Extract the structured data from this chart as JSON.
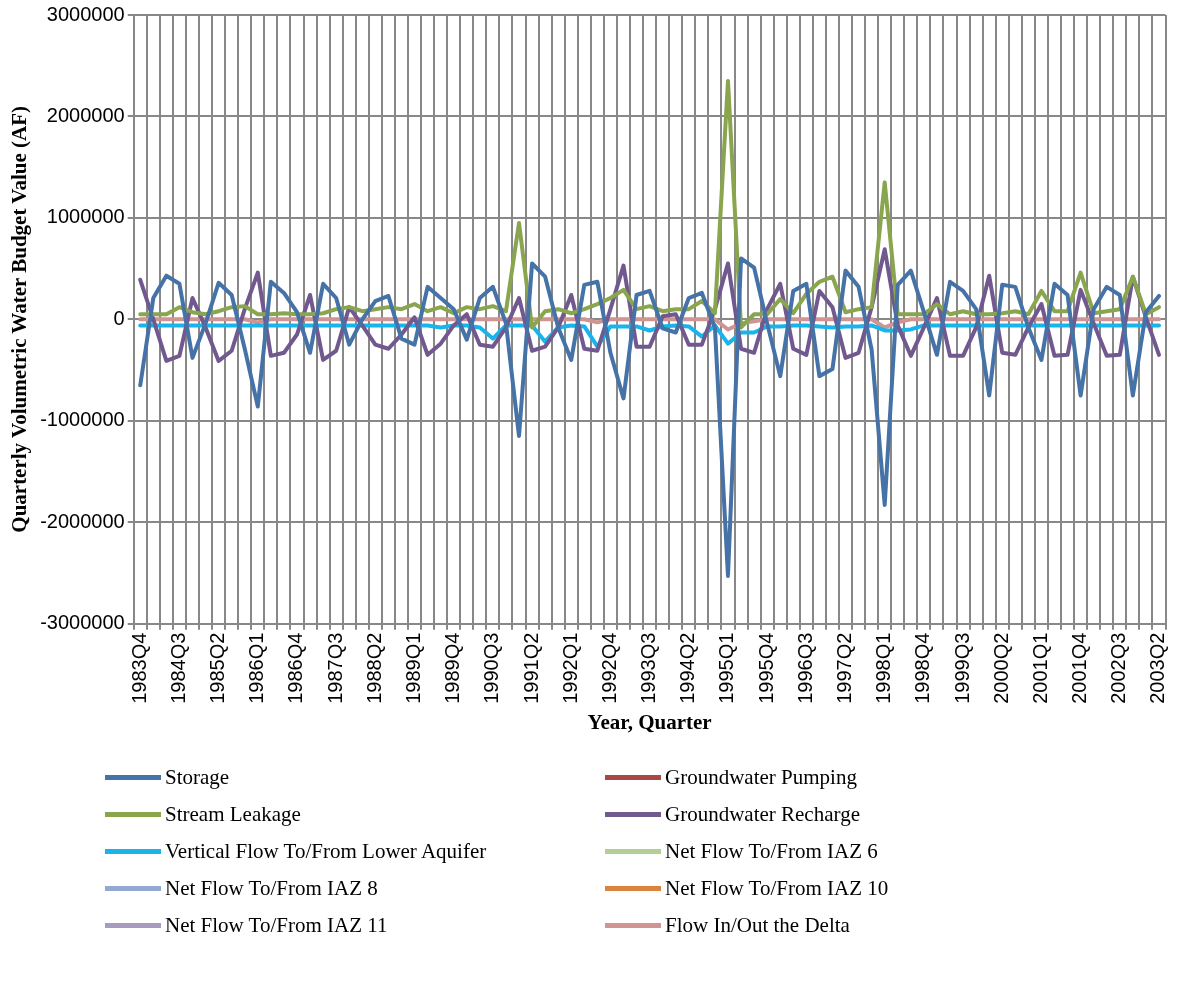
{
  "chart_data": {
    "type": "line",
    "xlabel": "Year, Quarter",
    "ylabel": "Quarterly Volumetric Water Budget Value (AF)",
    "categories": [
      "1983Q4",
      null,
      null,
      "1984Q3",
      null,
      null,
      "1985Q2",
      null,
      null,
      "1986Q1",
      null,
      null,
      "1986Q4",
      null,
      null,
      "1987Q3",
      null,
      null,
      "1988Q2",
      null,
      null,
      "1989Q1",
      null,
      null,
      "1989Q4",
      null,
      null,
      "1990Q3",
      null,
      null,
      "1991Q2",
      null,
      null,
      "1992Q1",
      null,
      null,
      "1992Q4",
      null,
      null,
      "1993Q3",
      null,
      null,
      "1994Q2",
      null,
      null,
      "1995Q1",
      null,
      null,
      "1995Q4",
      null,
      null,
      "1996Q3",
      null,
      null,
      "1997Q2",
      null,
      null,
      "1998Q1",
      null,
      null,
      "1998Q4",
      null,
      null,
      "1999Q3",
      null,
      null,
      "2000Q2",
      null,
      null,
      "2001Q1",
      null,
      null,
      "2001Q4",
      null,
      null,
      "2002Q3",
      null,
      null,
      "2003Q2"
    ],
    "series": [
      {
        "name": "Storage",
        "color": "#4572a7",
        "values": [
          -650000,
          210000,
          430000,
          350000,
          -380000,
          -40000,
          360000,
          240000,
          -290000,
          -860000,
          370000,
          260000,
          70000,
          -330000,
          350000,
          210000,
          -250000,
          0,
          180000,
          230000,
          -190000,
          -250000,
          320000,
          210000,
          100000,
          -200000,
          210000,
          320000,
          -40000,
          -1150000,
          550000,
          420000,
          -80000,
          -400000,
          340000,
          370000,
          -330000,
          -780000,
          240000,
          280000,
          -90000,
          -130000,
          210000,
          260000,
          -80000,
          -2530000,
          600000,
          510000,
          -40000,
          -560000,
          280000,
          350000,
          -560000,
          -490000,
          480000,
          320000,
          -300000,
          -1830000,
          340000,
          480000,
          70000,
          -350000,
          370000,
          280000,
          100000,
          -750000,
          340000,
          320000,
          -80000,
          -400000,
          350000,
          240000,
          -750000,
          100000,
          320000,
          240000,
          -750000,
          70000,
          230000
        ]
      },
      {
        "name": "Groundwater Pumping",
        "color": "#aa4643",
        "values": [
          null,
          null,
          null,
          null,
          null,
          null,
          null,
          null,
          null,
          null,
          null,
          null,
          null,
          null,
          null,
          null,
          null,
          null,
          null,
          null,
          null,
          null,
          null,
          null,
          null,
          null,
          null,
          null,
          null,
          null,
          null,
          null,
          null,
          null,
          null,
          null,
          null,
          null,
          null,
          null,
          null,
          null,
          null,
          null,
          null,
          null,
          null,
          null,
          null,
          null,
          null,
          null,
          null,
          null,
          null,
          null,
          null,
          null,
          null,
          null,
          null,
          null,
          null,
          null,
          null,
          null,
          null,
          null,
          null,
          null,
          null,
          null,
          null,
          null,
          null,
          null,
          null,
          null,
          null
        ]
      },
      {
        "name": "Stream Leakage",
        "color": "#89a54e",
        "values": [
          50000,
          50000,
          50000,
          120000,
          70000,
          50000,
          80000,
          120000,
          130000,
          50000,
          50000,
          60000,
          50000,
          50000,
          60000,
          100000,
          120000,
          80000,
          100000,
          120000,
          100000,
          150000,
          80000,
          120000,
          60000,
          120000,
          100000,
          130000,
          80000,
          950000,
          -80000,
          80000,
          100000,
          60000,
          100000,
          150000,
          210000,
          290000,
          100000,
          130000,
          80000,
          100000,
          100000,
          180000,
          60000,
          2350000,
          -80000,
          50000,
          50000,
          200000,
          60000,
          250000,
          370000,
          420000,
          70000,
          100000,
          120000,
          1350000,
          50000,
          50000,
          50000,
          150000,
          50000,
          80000,
          50000,
          50000,
          60000,
          80000,
          50000,
          280000,
          80000,
          80000,
          460000,
          60000,
          80000,
          100000,
          420000,
          50000,
          120000
        ]
      },
      {
        "name": "Groundwater Recharge",
        "color": "#71588f",
        "values": [
          390000,
          0,
          -410000,
          -360000,
          210000,
          -80000,
          -410000,
          -310000,
          100000,
          460000,
          -360000,
          -330000,
          -150000,
          240000,
          -400000,
          -310000,
          120000,
          -60000,
          -250000,
          -290000,
          -150000,
          20000,
          -350000,
          -240000,
          -60000,
          50000,
          -250000,
          -270000,
          -80000,
          210000,
          -310000,
          -270000,
          -80000,
          240000,
          -290000,
          -310000,
          100000,
          530000,
          -270000,
          -270000,
          30000,
          50000,
          -250000,
          -250000,
          100000,
          550000,
          -290000,
          -330000,
          100000,
          350000,
          -290000,
          -350000,
          280000,
          120000,
          -380000,
          -330000,
          120000,
          690000,
          -60000,
          -360000,
          -80000,
          210000,
          -360000,
          -360000,
          -80000,
          430000,
          -330000,
          -350000,
          -80000,
          150000,
          -360000,
          -350000,
          290000,
          -40000,
          -360000,
          -350000,
          420000,
          20000,
          -350000
        ]
      },
      {
        "name": "Vertical Flow To/From Lower Aquifer",
        "color": "#18b4ea",
        "values": [
          -60000,
          -60000,
          -60000,
          -60000,
          -60000,
          -60000,
          -60000,
          -60000,
          -60000,
          -60000,
          -60000,
          -60000,
          -60000,
          -60000,
          -60000,
          -60000,
          -60000,
          -60000,
          -60000,
          -60000,
          -60000,
          -60000,
          -60000,
          -80000,
          -60000,
          -60000,
          -80000,
          -190000,
          -60000,
          -60000,
          -60000,
          -220000,
          -80000,
          -60000,
          -70000,
          -270000,
          -70000,
          -70000,
          -70000,
          -110000,
          -70000,
          -60000,
          -70000,
          -170000,
          -60000,
          -240000,
          -130000,
          -130000,
          -70000,
          -70000,
          -60000,
          -60000,
          -70000,
          -80000,
          -70000,
          -70000,
          -60000,
          -110000,
          -110000,
          -100000,
          -60000,
          -60000,
          -60000,
          -60000,
          -60000,
          -60000,
          -60000,
          -60000,
          -60000,
          -60000,
          -60000,
          -60000,
          -60000,
          -60000,
          -60000,
          -60000,
          -60000,
          -60000,
          -60000
        ]
      },
      {
        "name": "Net Flow To/From IAZ 6",
        "color": "#b3cf95",
        "values": [
          null,
          null,
          null,
          null,
          null,
          null,
          null,
          null,
          null,
          null,
          null,
          null,
          null,
          null,
          null,
          null,
          null,
          null,
          null,
          null,
          null,
          null,
          null,
          null,
          null,
          null,
          null,
          null,
          null,
          null,
          null,
          null,
          null,
          null,
          null,
          null,
          null,
          null,
          null,
          null,
          null,
          null,
          null,
          null,
          null,
          null,
          null,
          null,
          null,
          null,
          null,
          null,
          null,
          null,
          null,
          null,
          null,
          null,
          null,
          null,
          null,
          null,
          null,
          null,
          null,
          null,
          null,
          null,
          null,
          null,
          null,
          null,
          null,
          null,
          null,
          null,
          null,
          null,
          null
        ]
      },
      {
        "name": "Net Flow To/From IAZ 8",
        "color": "#93a9cf",
        "values": [
          null,
          null,
          null,
          null,
          null,
          null,
          null,
          null,
          null,
          null,
          null,
          null,
          null,
          null,
          null,
          null,
          null,
          null,
          null,
          null,
          null,
          null,
          null,
          null,
          null,
          null,
          null,
          null,
          null,
          null,
          null,
          null,
          null,
          null,
          null,
          null,
          null,
          null,
          null,
          null,
          null,
          null,
          null,
          null,
          null,
          null,
          null,
          null,
          null,
          null,
          null,
          null,
          null,
          null,
          null,
          null,
          null,
          null,
          null,
          null,
          null,
          null,
          null,
          null,
          null,
          null,
          null,
          null,
          null,
          null,
          null,
          null,
          null,
          null,
          null,
          null,
          null,
          null,
          null
        ]
      },
      {
        "name": "Net Flow To/From IAZ 10",
        "color": "#db843d",
        "values": [
          null,
          null,
          null,
          null,
          null,
          null,
          null,
          null,
          null,
          null,
          null,
          null,
          null,
          null,
          null,
          null,
          null,
          null,
          null,
          null,
          null,
          null,
          null,
          null,
          null,
          null,
          null,
          null,
          null,
          null,
          null,
          null,
          null,
          null,
          null,
          null,
          null,
          null,
          null,
          null,
          null,
          null,
          null,
          null,
          null,
          null,
          null,
          null,
          null,
          null,
          null,
          null,
          null,
          null,
          null,
          null,
          null,
          null,
          null,
          null,
          null,
          null,
          null,
          null,
          null,
          null,
          null,
          null,
          null,
          null,
          null,
          null,
          null,
          null,
          null,
          null,
          null,
          null,
          null
        ]
      },
      {
        "name": "Net Flow To/From IAZ 11",
        "color": "#a99bbd",
        "values": [
          null,
          null,
          null,
          null,
          null,
          null,
          null,
          null,
          null,
          null,
          null,
          null,
          null,
          null,
          null,
          null,
          null,
          null,
          null,
          null,
          null,
          null,
          null,
          null,
          null,
          null,
          null,
          null,
          null,
          null,
          null,
          null,
          null,
          null,
          null,
          null,
          null,
          null,
          null,
          null,
          null,
          null,
          null,
          null,
          null,
          null,
          null,
          null,
          null,
          null,
          null,
          null,
          null,
          null,
          null,
          null,
          null,
          null,
          null,
          null,
          null,
          null,
          null,
          null,
          null,
          null,
          null,
          null,
          null,
          null,
          null,
          null,
          null,
          null,
          null,
          null,
          null,
          null,
          null
        ]
      },
      {
        "name": "Flow In/Out the Delta",
        "color": "#d09493",
        "values": [
          0,
          0,
          0,
          0,
          0,
          0,
          0,
          0,
          0,
          -30000,
          0,
          0,
          0,
          0,
          0,
          0,
          0,
          0,
          0,
          0,
          0,
          0,
          0,
          0,
          0,
          0,
          0,
          0,
          0,
          0,
          0,
          0,
          0,
          0,
          0,
          -30000,
          0,
          0,
          0,
          0,
          0,
          0,
          0,
          0,
          0,
          -100000,
          -40000,
          -20000,
          0,
          0,
          0,
          0,
          0,
          0,
          0,
          0,
          0,
          -80000,
          -30000,
          0,
          0,
          0,
          0,
          0,
          0,
          0,
          0,
          0,
          0,
          0,
          0,
          0,
          0,
          0,
          0,
          0,
          0,
          0,
          0
        ]
      }
    ],
    "ylim": [
      -3000000,
      3000000
    ],
    "yticks": [
      -3000000,
      -2000000,
      -1000000,
      0,
      1000000,
      2000000,
      3000000
    ],
    "grid": true,
    "legend": "bottom",
    "marker": "none",
    "line_style": "solid"
  }
}
